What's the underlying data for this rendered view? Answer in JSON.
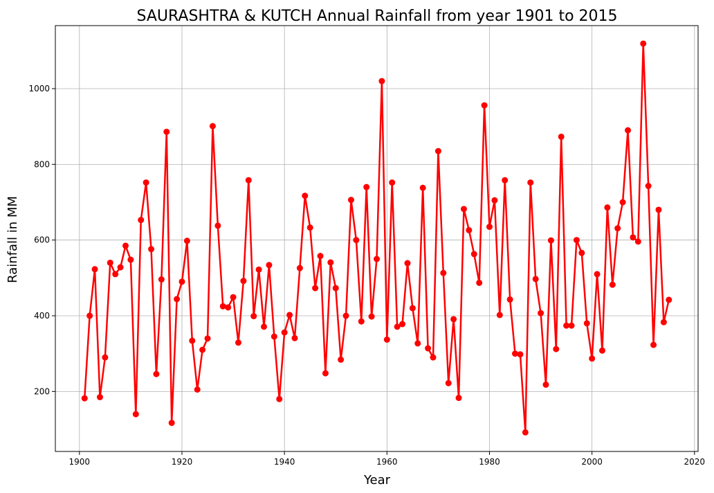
{
  "chart_data": {
    "type": "line",
    "title": "SAURASHTRA & KUTCH Annual Rainfall from year 1901 to 2015",
    "xlabel": "Year",
    "ylabel": "Rainfall in MM",
    "xlim": [
      1895.3,
      2020.7
    ],
    "ylim": [
      41.5,
      1166.5
    ],
    "xticks": [
      1900,
      1920,
      1940,
      1960,
      1980,
      2000,
      2020
    ],
    "yticks": [
      200,
      400,
      600,
      800,
      1000
    ],
    "grid": true,
    "color": "#ff0000",
    "marker": "circle",
    "series": [
      {
        "x_start": 1901,
        "values": [
          182,
          400,
          523,
          185,
          290,
          540,
          510,
          528,
          585,
          548,
          140,
          653,
          752,
          576,
          246,
          496,
          886,
          117,
          444,
          490,
          598,
          334,
          205,
          310,
          340,
          901,
          638,
          425,
          422,
          449,
          329,
          492,
          758,
          399,
          522,
          371,
          534,
          345,
          180,
          356,
          402,
          341,
          526,
          717,
          633,
          473,
          558,
          248,
          541,
          473,
          284,
          400,
          706,
          600,
          385,
          740,
          398,
          550,
          1020,
          337,
          752,
          371,
          378,
          539,
          420,
          327,
          738,
          314,
          290,
          835,
          513,
          222,
          391,
          183,
          682,
          626,
          563,
          487,
          956,
          635,
          705,
          402,
          758,
          443,
          300,
          298,
          92,
          752,
          497,
          407,
          218,
          599,
          312,
          873,
          374,
          374,
          600,
          566,
          380,
          287,
          510,
          308,
          686,
          482,
          631,
          700,
          890,
          607,
          596,
          1119,
          743,
          323,
          680,
          383,
          442
        ]
      }
    ]
  }
}
